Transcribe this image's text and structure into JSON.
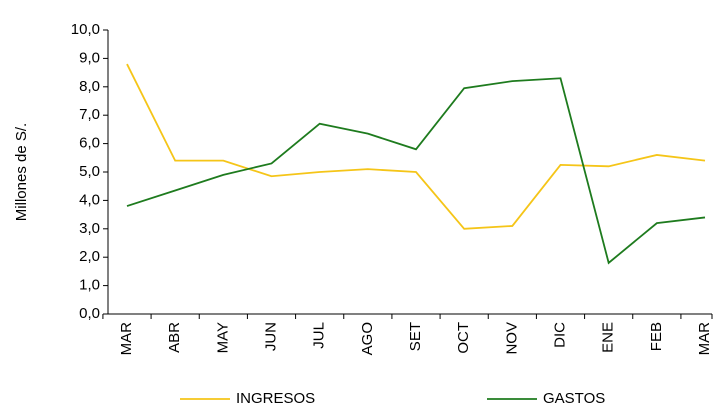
{
  "chart_data": {
    "type": "line",
    "y_label": "Millones de S/.",
    "categories": [
      "MAR",
      "ABR",
      "MAY",
      "JUN",
      "JUL",
      "AGO",
      "SET",
      "OCT",
      "NOV",
      "DIC",
      "ENE",
      "FEB",
      "MAR"
    ],
    "series": [
      {
        "name": "INGRESOS",
        "color": "#f5c518",
        "values": [
          8.8,
          5.4,
          5.4,
          4.85,
          5.0,
          5.1,
          5.0,
          3.0,
          3.1,
          5.25,
          5.2,
          5.6,
          5.4
        ]
      },
      {
        "name": "GASTOS",
        "color": "#1e7b1e",
        "values": [
          3.8,
          4.35,
          4.9,
          5.3,
          6.7,
          6.35,
          5.8,
          7.95,
          8.2,
          8.3,
          1.8,
          3.2,
          3.4
        ]
      }
    ],
    "ylim": [
      0,
      10
    ],
    "yticks": [
      {
        "value": 0,
        "label": "0,0"
      },
      {
        "value": 1,
        "label": "1,0"
      },
      {
        "value": 2,
        "label": "2,0"
      },
      {
        "value": 3,
        "label": "3,0"
      },
      {
        "value": 4,
        "label": "4,0"
      },
      {
        "value": 5,
        "label": "5,0"
      },
      {
        "value": 6,
        "label": "6,0"
      },
      {
        "value": 7,
        "label": "7,0"
      },
      {
        "value": 8,
        "label": "8,0"
      },
      {
        "value": 9,
        "label": "9,0"
      },
      {
        "value": 10,
        "label": "10,0"
      }
    ],
    "grid": false,
    "legend": "bottom"
  }
}
